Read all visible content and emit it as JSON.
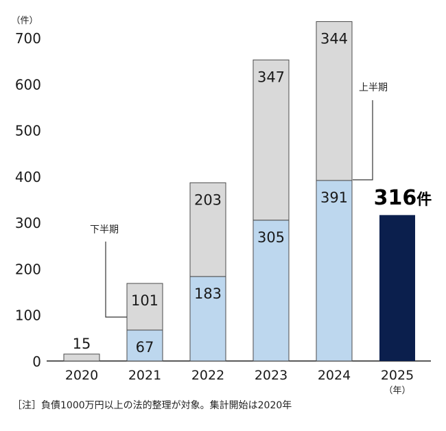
{
  "chart_data": {
    "type": "bar",
    "stacked": true,
    "unit_label": "（件）",
    "x_unit_label": "（年）",
    "categories": [
      "2020",
      "2021",
      "2022",
      "2023",
      "2024",
      "2025"
    ],
    "ylim": [
      0,
      700
    ],
    "yticks": [
      0,
      100,
      200,
      300,
      400,
      500,
      600,
      700
    ],
    "series": [
      {
        "name": "上半期",
        "values": [
          null,
          67,
          183,
          305,
          391,
          null
        ],
        "color": "#bdd7ee"
      },
      {
        "name": "下半期",
        "values": [
          15,
          101,
          203,
          347,
          344,
          null
        ],
        "color": "#d9d9d9"
      },
      {
        "name": "2025",
        "values": [
          null,
          null,
          null,
          null,
          null,
          316
        ],
        "color": "#0b1f4d"
      }
    ],
    "annotations": {
      "lower_half_label": "下半期",
      "upper_half_label": "上半期",
      "highlight_value": "316",
      "highlight_unit": "件"
    }
  },
  "footnote": "［注］負債1000万円以上の法的整理が対象。集計開始は2020年"
}
